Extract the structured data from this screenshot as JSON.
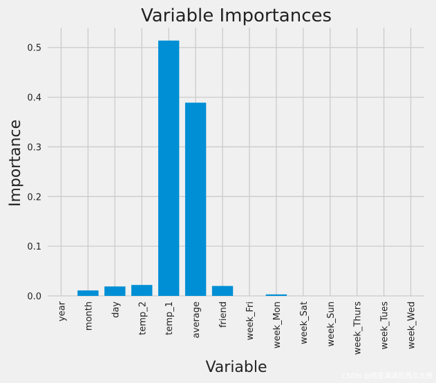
{
  "chart_data": {
    "type": "bar",
    "title": "Variable Importances",
    "xlabel": "Variable",
    "ylabel": "Importance",
    "categories": [
      "year",
      "month",
      "day",
      "temp_2",
      "temp_1",
      "average",
      "friend",
      "week_Fri",
      "week_Mon",
      "week_Sat",
      "week_Sun",
      "week_Thurs",
      "week_Tues",
      "week_Wed"
    ],
    "values": [
      0.0,
      0.011,
      0.019,
      0.022,
      0.514,
      0.389,
      0.02,
      0.0,
      0.003,
      0.0,
      0.0,
      0.0,
      0.0,
      0.0
    ],
    "yticks": [
      0.0,
      0.1,
      0.2,
      0.3,
      0.4,
      0.5
    ],
    "ytick_labels": [
      "0.0",
      "0.1",
      "0.2",
      "0.3",
      "0.4",
      "0.5"
    ],
    "ylim": [
      0,
      0.54
    ],
    "grid": true,
    "bar_color": "#008fd5",
    "grid_color": "#cbcbcb",
    "background_color": "#f0f0f0"
  },
  "watermark": "CSDN @稽意满满的西瓜大侠"
}
